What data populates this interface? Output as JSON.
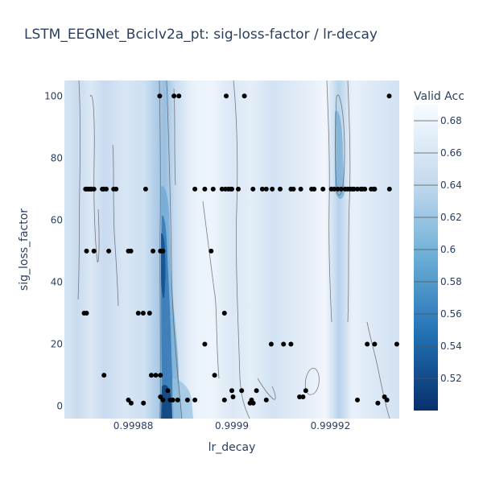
{
  "chart_data": {
    "type": "heatmap",
    "title": "LSTM_EEGNet_BcicIv2a_pt: sig-loss-factor / lr-decay",
    "xlabel": "lr_decay",
    "ylabel": "sig_loss_factor",
    "xlim": [
      0.999866,
      0.999934
    ],
    "ylim": [
      -4,
      105
    ],
    "x_ticks": [
      0.99988,
      0.9999,
      0.99992
    ],
    "x_tick_labels": [
      "0.99988",
      "0.9999",
      "0.99992"
    ],
    "y_ticks": [
      0,
      20,
      40,
      60,
      80,
      100
    ],
    "y_tick_labels": [
      "0",
      "20",
      "40",
      "60",
      "80",
      "100"
    ],
    "colorscale": "Blues_reversed",
    "colorbar": {
      "title": "Valid Acc",
      "range": [
        0.5,
        0.69
      ],
      "ticks": [
        0.52,
        0.54,
        0.56,
        0.58,
        0.6,
        0.62,
        0.64,
        0.66,
        0.68
      ],
      "tick_labels": [
        "0.52",
        "0.54",
        "0.56",
        "0.58",
        "0.6",
        "0.62",
        "0.64",
        "0.66",
        "0.68"
      ]
    },
    "trials": [
      {
        "x": 0.9998703,
        "y": 70
      },
      {
        "x": 0.9998705,
        "y": 70
      },
      {
        "x": 0.9998708,
        "y": 70
      },
      {
        "x": 0.999871,
        "y": 70
      },
      {
        "x": 0.9998713,
        "y": 70
      },
      {
        "x": 0.9998715,
        "y": 70
      },
      {
        "x": 0.999872,
        "y": 70
      },
      {
        "x": 0.9998737,
        "y": 70
      },
      {
        "x": 0.999874,
        "y": 70
      },
      {
        "x": 0.9998745,
        "y": 70
      },
      {
        "x": 0.999876,
        "y": 70
      },
      {
        "x": 0.9998765,
        "y": 70
      },
      {
        "x": 0.9998825,
        "y": 70
      },
      {
        "x": 0.9998925,
        "y": 70
      },
      {
        "x": 0.9998945,
        "y": 70
      },
      {
        "x": 0.9998962,
        "y": 70
      },
      {
        "x": 0.999898,
        "y": 70
      },
      {
        "x": 0.9998987,
        "y": 70
      },
      {
        "x": 0.9998993,
        "y": 70
      },
      {
        "x": 0.9998998,
        "y": 70
      },
      {
        "x": 0.9999,
        "y": 70
      },
      {
        "x": 0.9999013,
        "y": 70
      },
      {
        "x": 0.9999043,
        "y": 70
      },
      {
        "x": 0.9999062,
        "y": 70
      },
      {
        "x": 0.999907,
        "y": 70
      },
      {
        "x": 0.9999082,
        "y": 70
      },
      {
        "x": 0.9999098,
        "y": 70
      },
      {
        "x": 0.999912,
        "y": 70
      },
      {
        "x": 0.9999125,
        "y": 70
      },
      {
        "x": 0.999914,
        "y": 70
      },
      {
        "x": 0.9999162,
        "y": 70
      },
      {
        "x": 0.9999167,
        "y": 70
      },
      {
        "x": 0.9999185,
        "y": 70
      },
      {
        "x": 0.9999202,
        "y": 70
      },
      {
        "x": 0.9999208,
        "y": 70
      },
      {
        "x": 0.9999215,
        "y": 70
      },
      {
        "x": 0.9999222,
        "y": 70
      },
      {
        "x": 0.999923,
        "y": 70
      },
      {
        "x": 0.9999235,
        "y": 70
      },
      {
        "x": 0.999924,
        "y": 70
      },
      {
        "x": 0.9999245,
        "y": 70
      },
      {
        "x": 0.9999248,
        "y": 70
      },
      {
        "x": 0.9999255,
        "y": 70
      },
      {
        "x": 0.9999262,
        "y": 70
      },
      {
        "x": 0.999927,
        "y": 70
      },
      {
        "x": 0.9999283,
        "y": 70
      },
      {
        "x": 0.9999288,
        "y": 70
      },
      {
        "x": 0.999929,
        "y": 70
      },
      {
        "x": 0.999932,
        "y": 70
      },
      {
        "x": 0.9999265,
        "y": 70
      },
      {
        "x": 0.99988535,
        "y": 100
      },
      {
        "x": 0.99988825,
        "y": 100
      },
      {
        "x": 0.99988925,
        "y": 100
      },
      {
        "x": 0.99989885,
        "y": 100
      },
      {
        "x": 0.99990255,
        "y": 100
      },
      {
        "x": 0.99993195,
        "y": 100
      },
      {
        "x": 0.9998705,
        "y": 50
      },
      {
        "x": 0.999872,
        "y": 50
      },
      {
        "x": 0.999875,
        "y": 50
      },
      {
        "x": 0.999879,
        "y": 50
      },
      {
        "x": 0.9998795,
        "y": 50
      },
      {
        "x": 0.999884,
        "y": 50
      },
      {
        "x": 0.9998855,
        "y": 50
      },
      {
        "x": 0.999886,
        "y": 50
      },
      {
        "x": 0.9998958,
        "y": 50
      },
      {
        "x": 0.99987,
        "y": 30
      },
      {
        "x": 0.9998705,
        "y": 30
      },
      {
        "x": 0.999881,
        "y": 30
      },
      {
        "x": 0.999882,
        "y": 30
      },
      {
        "x": 0.9998833,
        "y": 30
      },
      {
        "x": 0.9998985,
        "y": 30
      },
      {
        "x": 0.9998945,
        "y": 20
      },
      {
        "x": 0.999908,
        "y": 20
      },
      {
        "x": 0.9999105,
        "y": 20
      },
      {
        "x": 0.999912,
        "y": 20
      },
      {
        "x": 0.9999275,
        "y": 20
      },
      {
        "x": 0.999929,
        "y": 20
      },
      {
        "x": 0.9999335,
        "y": 20
      },
      {
        "x": 0.99987405,
        "y": 10
      },
      {
        "x": 0.99988365,
        "y": 10
      },
      {
        "x": 0.99988455,
        "y": 10
      },
      {
        "x": 0.9998855,
        "y": 10
      },
      {
        "x": 0.9998965,
        "y": 10
      },
      {
        "x": 0.999887,
        "y": 5
      },
      {
        "x": 0.9999,
        "y": 5
      },
      {
        "x": 0.999902,
        "y": 5
      },
      {
        "x": 0.999905,
        "y": 5
      },
      {
        "x": 0.999915,
        "y": 5
      },
      {
        "x": 0.999879,
        "y": 2
      },
      {
        "x": 0.999886,
        "y": 2
      },
      {
        "x": 0.9998875,
        "y": 2
      },
      {
        "x": 0.999888,
        "y": 2
      },
      {
        "x": 0.999889,
        "y": 2
      },
      {
        "x": 0.999891,
        "y": 2
      },
      {
        "x": 0.9998925,
        "y": 2
      },
      {
        "x": 0.9998985,
        "y": 2
      },
      {
        "x": 0.999904,
        "y": 2
      },
      {
        "x": 0.999907,
        "y": 2
      },
      {
        "x": 0.9999255,
        "y": 2
      },
      {
        "x": 0.9999315,
        "y": 2
      },
      {
        "x": 0.9998855,
        "y": 3
      },
      {
        "x": 0.99990025,
        "y": 3
      },
      {
        "x": 0.99991375,
        "y": 3
      },
      {
        "x": 0.99991445,
        "y": 3
      },
      {
        "x": 0.999931,
        "y": 3
      },
      {
        "x": 0.99987955,
        "y": 1
      },
      {
        "x": 0.99988205,
        "y": 1
      },
      {
        "x": 0.9999037,
        "y": 1
      },
      {
        "x": 0.99990435,
        "y": 1
      },
      {
        "x": 0.99992965,
        "y": 1
      }
    ]
  }
}
